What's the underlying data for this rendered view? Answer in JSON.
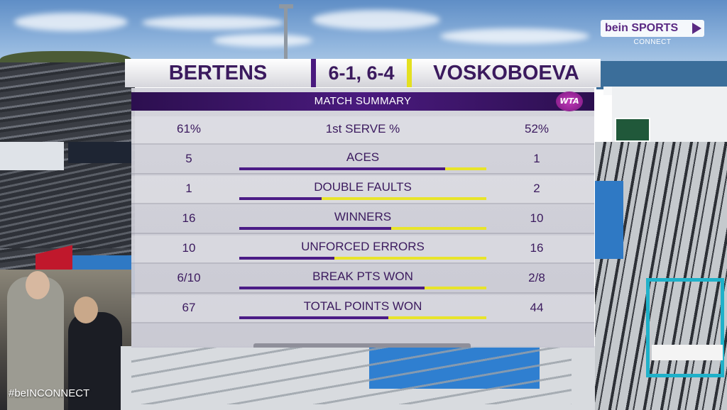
{
  "broadcaster": {
    "logo": "bein SPORTS",
    "sub": "CONNECT",
    "hashtag": "#beINCONNECT"
  },
  "match": {
    "player_left": "BERTENS",
    "score": "6-1, 6-4",
    "player_right": "VOSKOBOEVA",
    "summary_title": "MATCH SUMMARY",
    "tour_logo": "WTA"
  },
  "colors": {
    "left_bar": "#4b1c86",
    "right_bar": "#e8e42a",
    "text": "#3b1a5e"
  },
  "stats": [
    {
      "label": "1st SERVE %",
      "left": "61%",
      "right": "52%",
      "bar": false
    },
    {
      "label": "ACES",
      "left": "5",
      "right": "1",
      "bar": true,
      "left_share": 0.833
    },
    {
      "label": "DOUBLE FAULTS",
      "left": "1",
      "right": "2",
      "bar": true,
      "left_share": 0.333
    },
    {
      "label": "WINNERS",
      "left": "16",
      "right": "10",
      "bar": true,
      "left_share": 0.615
    },
    {
      "label": "UNFORCED ERRORS",
      "left": "10",
      "right": "16",
      "bar": true,
      "left_share": 0.385
    },
    {
      "label": "BREAK PTS WON",
      "left": "6/10",
      "right": "2/8",
      "bar": true,
      "left_share": 0.75
    },
    {
      "label": "TOTAL POINTS WON",
      "left": "67",
      "right": "44",
      "bar": true,
      "left_share": 0.604
    }
  ]
}
